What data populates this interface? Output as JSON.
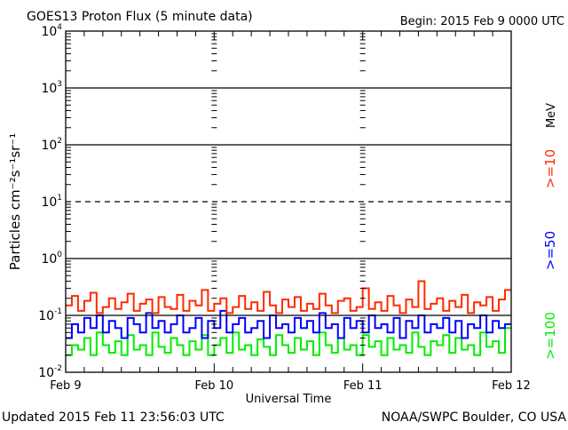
{
  "chart_data": {
    "type": "line",
    "title": "GOES13 Proton Flux (5 minute data)",
    "begin": "Begin: 2015 Feb 9 0000 UTC",
    "xlabel": "Universal Time",
    "ylabel": "Particles cm⁻²s⁻¹sr⁻¹",
    "units_label": "MeV",
    "x_tick_labels": [
      "Feb 9",
      "Feb 10",
      "Feb 11",
      "Feb 12"
    ],
    "x_range_days": [
      0,
      3
    ],
    "y_scale": "log",
    "ylim": [
      0.01,
      10000
    ],
    "y_tick_labels": [
      {
        "base": "10",
        "exp": "4",
        "value": 10000
      },
      {
        "base": "10",
        "exp": "3",
        "value": 1000
      },
      {
        "base": "10",
        "exp": "2",
        "value": 100
      },
      {
        "base": "10",
        "exp": "1",
        "value": 10
      },
      {
        "base": "10",
        "exp": "0",
        "value": 1
      },
      {
        "base": "10",
        "exp": "-1",
        "value": 0.1
      },
      {
        "base": "10",
        "exp": "-2",
        "value": 0.01
      }
    ],
    "reference_lines": [
      {
        "value": 1000,
        "style": "solid"
      },
      {
        "value": 100,
        "style": "solid"
      },
      {
        "value": 10,
        "style": "dashed"
      },
      {
        "value": 1,
        "style": "solid"
      },
      {
        "value": 0.1,
        "style": "solid"
      }
    ],
    "series": [
      {
        "name": ">=10",
        "color": "#ff2a00",
        "values": [
          0.15,
          0.22,
          0.12,
          0.18,
          0.25,
          0.11,
          0.14,
          0.2,
          0.13,
          0.17,
          0.24,
          0.12,
          0.16,
          0.19,
          0.11,
          0.21,
          0.14,
          0.13,
          0.23,
          0.12,
          0.18,
          0.15,
          0.28,
          0.12,
          0.16,
          0.2,
          0.11,
          0.14,
          0.22,
          0.13,
          0.17,
          0.12,
          0.26,
          0.15,
          0.11,
          0.19,
          0.14,
          0.21,
          0.12,
          0.16,
          0.13,
          0.24,
          0.15,
          0.11,
          0.18,
          0.2,
          0.12,
          0.14,
          0.3,
          0.13,
          0.17,
          0.12,
          0.22,
          0.15,
          0.11,
          0.19,
          0.14,
          0.4,
          0.13,
          0.16,
          0.2,
          0.12,
          0.18,
          0.14,
          0.23,
          0.11,
          0.17,
          0.15,
          0.21,
          0.12,
          0.19,
          0.28
        ]
      },
      {
        "name": ">=50",
        "color": "#0000ff",
        "values": [
          0.04,
          0.07,
          0.05,
          0.09,
          0.06,
          0.1,
          0.05,
          0.08,
          0.06,
          0.04,
          0.09,
          0.07,
          0.05,
          0.11,
          0.06,
          0.08,
          0.05,
          0.07,
          0.1,
          0.05,
          0.06,
          0.09,
          0.04,
          0.08,
          0.06,
          0.12,
          0.05,
          0.07,
          0.09,
          0.05,
          0.06,
          0.08,
          0.04,
          0.1,
          0.06,
          0.07,
          0.05,
          0.09,
          0.06,
          0.08,
          0.05,
          0.11,
          0.06,
          0.07,
          0.04,
          0.09,
          0.06,
          0.08,
          0.05,
          0.1,
          0.06,
          0.07,
          0.05,
          0.09,
          0.04,
          0.08,
          0.06,
          0.1,
          0.05,
          0.07,
          0.06,
          0.09,
          0.05,
          0.08,
          0.04,
          0.07,
          0.06,
          0.1,
          0.05,
          0.08,
          0.06,
          0.07
        ]
      },
      {
        "name": ">=100",
        "color": "#00ee00",
        "values": [
          0.02,
          0.03,
          0.025,
          0.04,
          0.02,
          0.05,
          0.03,
          0.022,
          0.035,
          0.02,
          0.045,
          0.025,
          0.03,
          0.02,
          0.05,
          0.028,
          0.022,
          0.04,
          0.03,
          0.02,
          0.035,
          0.025,
          0.045,
          0.02,
          0.03,
          0.04,
          0.022,
          0.05,
          0.025,
          0.03,
          0.02,
          0.038,
          0.028,
          0.02,
          0.045,
          0.03,
          0.022,
          0.04,
          0.025,
          0.035,
          0.02,
          0.05,
          0.03,
          0.022,
          0.04,
          0.025,
          0.03,
          0.02,
          0.045,
          0.028,
          0.035,
          0.02,
          0.04,
          0.025,
          0.03,
          0.022,
          0.05,
          0.028,
          0.02,
          0.035,
          0.03,
          0.045,
          0.022,
          0.04,
          0.025,
          0.03,
          0.02,
          0.05,
          0.028,
          0.035,
          0.022,
          0.06
        ]
      }
    ]
  },
  "footer": {
    "updated": "Updated 2015 Feb 11 23:56:03 UTC",
    "source": "NOAA/SWPC Boulder, CO USA"
  }
}
